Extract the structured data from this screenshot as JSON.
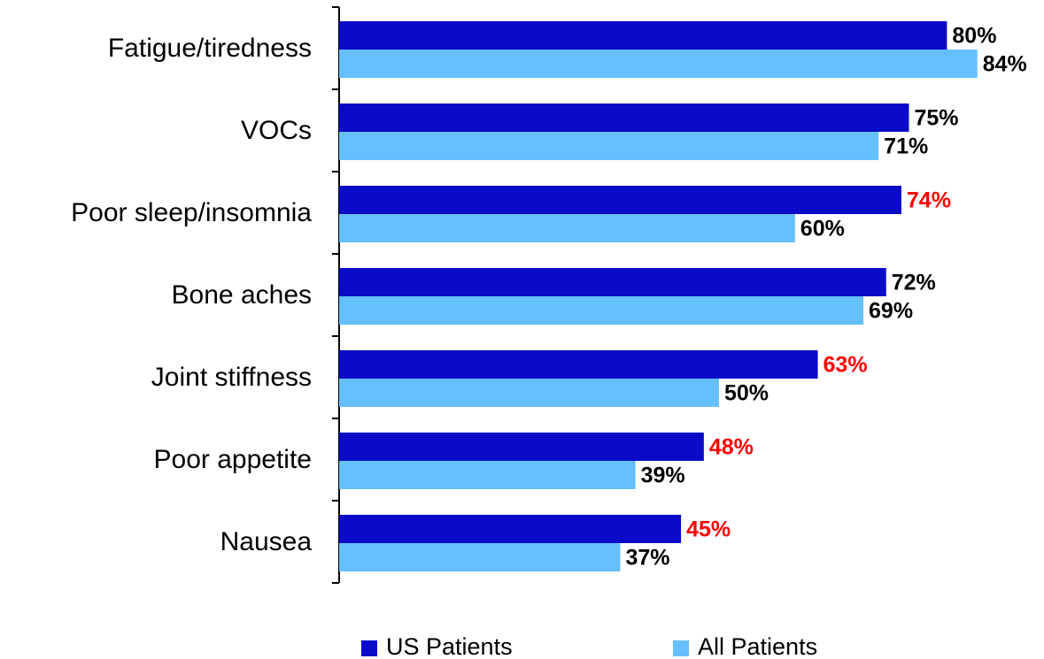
{
  "chart_data": {
    "type": "hbar",
    "categories": [
      "Fatigue/tiredness",
      "VOCs",
      "Poor sleep/insomnia",
      "Bone aches",
      "Joint stiffness",
      "Poor appetite",
      "Nausea"
    ],
    "series": [
      {
        "name": "US Patients",
        "color": "#0a0ac8",
        "values": [
          80,
          75,
          74,
          72,
          63,
          48,
          45
        ],
        "value_labels": [
          "80%",
          "75%",
          "74%",
          "72%",
          "63%",
          "48%",
          "45%"
        ],
        "label_colors": [
          "#000000",
          "#000000",
          "#ff0000",
          "#000000",
          "#ff0000",
          "#ff0000",
          "#ff0000"
        ]
      },
      {
        "name": "All Patients",
        "color": "#66bfff",
        "values": [
          84,
          71,
          60,
          69,
          50,
          39,
          37
        ],
        "value_labels": [
          "84%",
          "71%",
          "60%",
          "69%",
          "50%",
          "39%",
          "37%"
        ],
        "label_colors": [
          "#000000",
          "#000000",
          "#000000",
          "#000000",
          "#000000",
          "#000000",
          "#000000"
        ]
      }
    ],
    "legend": "bottom"
  }
}
